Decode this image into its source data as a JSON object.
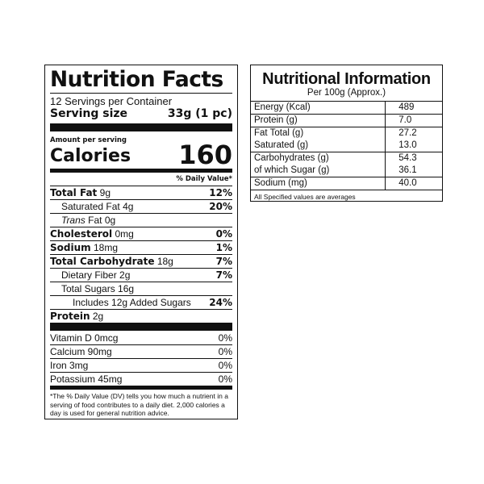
{
  "facts": {
    "title": "Nutrition Facts",
    "servings": "12 Servings per Container",
    "serving_size_label": "Serving size",
    "serving_size_value": "33g (1 pc)",
    "amount_per_serving": "Amount per serving",
    "calories_label": "Calories",
    "calories_value": "160",
    "dv_header": "% Daily Value*",
    "nutrients": [
      {
        "name": "Total Fat",
        "amount": "9g",
        "dv": "12%"
      },
      {
        "name": "Saturated Fat",
        "amount": "4g",
        "dv": "20%"
      },
      {
        "name": "Trans",
        "name2": "Fat",
        "amount": "0g",
        "dv": ""
      },
      {
        "name": "Cholesterol",
        "amount": "0mg",
        "dv": "0%"
      },
      {
        "name": "Sodium",
        "amount": "18mg",
        "dv": "1%"
      },
      {
        "name": "Total Carbohydrate",
        "amount": "18g",
        "dv": "7%"
      },
      {
        "name": "Dietary Fiber",
        "amount": "2g",
        "dv": "7%"
      },
      {
        "name": "Total Sugars",
        "amount": "16g",
        "dv": ""
      },
      {
        "name": "Includes 12g Added Sugars",
        "amount": "",
        "dv": "24%"
      },
      {
        "name": "Protein",
        "amount": "2g",
        "dv": ""
      }
    ],
    "vitamins": [
      {
        "label": "Vitamin D 0mcg",
        "dv": "0%"
      },
      {
        "label": "Calcium 90mg",
        "dv": "0%"
      },
      {
        "label": "Iron 3mg",
        "dv": "0%"
      },
      {
        "label": "Potassium 45mg",
        "dv": "0%"
      }
    ],
    "footnote": "*The % Daily Value (DV) tells you how much a nutrient in a serving of food contributes to a daily diet. 2,000 calories a day is used for general nutrition advice."
  },
  "info": {
    "title": "Nutritional Information",
    "subtitle": "Per 100g (Approx.)",
    "rows": [
      {
        "label": "Energy (Kcal)",
        "value": "489"
      },
      {
        "label": "Protein (g)",
        "value": "7.0"
      },
      {
        "label": "Fat Total (g)",
        "value": "27.2"
      },
      {
        "label": "Saturated (g)",
        "value": "13.0"
      },
      {
        "label": "Carbohydrates (g)",
        "value": "54.3"
      },
      {
        "label": "of which Sugar (g)",
        "value": "36.1"
      },
      {
        "label": "Sodium (mg)",
        "value": "40.0"
      }
    ],
    "footnote": "All Specified values are averages"
  }
}
